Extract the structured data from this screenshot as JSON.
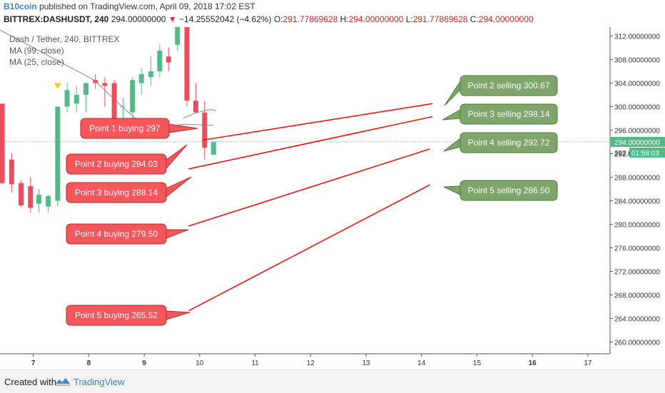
{
  "header": {
    "author": "B10coin",
    "published_text": "published on TradingView.com, April 09, 2018 17:02 EST",
    "symbol": "BITTREX:DASHUSDT, 240",
    "last": "294.00000000",
    "change_arrow": "▼",
    "change": "−14.25552042 (−4.62%)",
    "o_label": "O:",
    "o_value": "291.77869628",
    "h_label": "H:",
    "h_value": "294.00000000",
    "l_label": "L:",
    "l_value": "291.77869628",
    "c_label": "C:",
    "c_value": "294.00000000"
  },
  "legend": {
    "title": "Dash / Tether, 240, BITTREX",
    "ma99": "MA (99, close)",
    "ma25": "MA (25, close)"
  },
  "footer": {
    "created_with": "Created with",
    "brand": "TradingView"
  },
  "chart_data": {
    "type": "candlestick",
    "colors": {
      "up": "#53b987",
      "down": "#eb4d5c",
      "buy_label": "#f2575c",
      "sell_label": "#7ea56a",
      "line": "#ff0000",
      "ma99": "#7f8c8d",
      "ma25": "#5aa45a"
    },
    "ylim": [
      258,
      313.5
    ],
    "xlim": [
      6.4,
      17.4
    ],
    "y_ticks": [
      "260.00000000",
      "264.00000000",
      "268.00000000",
      "272.00000000",
      "276.00000000",
      "280.00000000",
      "284.00000000",
      "288.00000000",
      "292.00000000",
      "296.00000000",
      "300.00000000",
      "304.00000000",
      "308.00000000",
      "312.00000000"
    ],
    "y_tick_values": [
      260,
      264,
      268,
      272,
      276,
      280,
      284,
      288,
      292,
      296,
      300,
      304,
      308,
      312
    ],
    "x_ticks": [
      "7",
      "8",
      "9",
      "10",
      "11",
      "12",
      "13",
      "14",
      "15",
      "16",
      "17"
    ],
    "x_tick_values": [
      7,
      8,
      9,
      10,
      11,
      12,
      13,
      14,
      15,
      16,
      17
    ],
    "x_tick_bold": [
      "7",
      "8",
      "9",
      "16"
    ],
    "last_price_label": "294.00000000",
    "last_price_value": 294.0,
    "countdown_label": "01:58:03",
    "countdown_axis_label": "292.0",
    "candles": [
      {
        "t": 6.44,
        "o": 300.5,
        "h": 300.5,
        "l": 286.8,
        "c": 287.0
      },
      {
        "t": 6.61,
        "o": 291.0,
        "h": 292.0,
        "l": 285.4,
        "c": 286.8
      },
      {
        "t": 6.78,
        "o": 287.0,
        "h": 287.5,
        "l": 283.0,
        "c": 283.2
      },
      {
        "t": 6.95,
        "o": 286.5,
        "h": 288.0,
        "l": 282.0,
        "c": 282.8
      },
      {
        "t": 7.1,
        "o": 283.5,
        "h": 286.0,
        "l": 282.0,
        "c": 285.0
      },
      {
        "t": 7.27,
        "o": 283.0,
        "h": 285.0,
        "l": 282.0,
        "c": 284.8
      },
      {
        "t": 7.44,
        "o": 284.0,
        "h": 300.0,
        "l": 283.0,
        "c": 300.0
      },
      {
        "t": 7.61,
        "o": 300.0,
        "h": 304.0,
        "l": 299.0,
        "c": 302.8
      },
      {
        "t": 7.78,
        "o": 300.5,
        "h": 303.5,
        "l": 299.0,
        "c": 302.0
      },
      {
        "t": 7.95,
        "o": 302.0,
        "h": 304.0,
        "l": 299.0,
        "c": 304.0
      },
      {
        "t": 8.12,
        "o": 304.5,
        "h": 305.5,
        "l": 303.0,
        "c": 304.0
      },
      {
        "t": 8.29,
        "o": 304.0,
        "h": 305.0,
        "l": 300.0,
        "c": 303.5
      },
      {
        "t": 8.46,
        "o": 304.0,
        "h": 304.5,
        "l": 295.0,
        "c": 296.0
      },
      {
        "t": 8.62,
        "o": 300.0,
        "h": 301.5,
        "l": 297.0,
        "c": 300.0
      },
      {
        "t": 8.79,
        "o": 299.0,
        "h": 305.0,
        "l": 298.0,
        "c": 304.5
      },
      {
        "t": 8.95,
        "o": 304.0,
        "h": 306.5,
        "l": 302.0,
        "c": 305.5
      },
      {
        "t": 9.12,
        "o": 305.0,
        "h": 308.5,
        "l": 303.5,
        "c": 306.0
      },
      {
        "t": 9.28,
        "o": 306.0,
        "h": 310.5,
        "l": 305.0,
        "c": 309.5
      },
      {
        "t": 9.44,
        "o": 308.5,
        "h": 310.0,
        "l": 306.0,
        "c": 307.5
      },
      {
        "t": 9.6,
        "o": 310.5,
        "h": 313.5,
        "l": 309.5,
        "c": 313.5
      },
      {
        "t": 9.77,
        "o": 313.5,
        "h": 313.5,
        "l": 300.0,
        "c": 301.0
      },
      {
        "t": 9.93,
        "o": 301.0,
        "h": 304.0,
        "l": 299.0,
        "c": 299.0
      },
      {
        "t": 10.09,
        "o": 299.0,
        "h": 301.0,
        "l": 291.0,
        "c": 293.0
      },
      {
        "t": 10.25,
        "o": 291.8,
        "h": 294.0,
        "l": 291.8,
        "c": 294.0
      }
    ],
    "ma99": [
      [
        6.4,
        313.0
      ],
      [
        7.1,
        309.5
      ],
      [
        7.6,
        307.0
      ],
      [
        8.1,
        304.5
      ],
      [
        8.6,
        300.0
      ],
      [
        8.9,
        297.5
      ],
      [
        9.3,
        296.5
      ],
      [
        9.7,
        297.0
      ],
      [
        10.25,
        296.8
      ]
    ],
    "ma25": [
      [
        9.7,
        298.0
      ],
      [
        9.95,
        299.0
      ],
      [
        10.2,
        299.5
      ],
      [
        10.3,
        299.3
      ]
    ],
    "marker": {
      "t": 7.44,
      "v": 303.5
    },
    "trades": [
      {
        "buy_label": "Point 1 buying 297",
        "buy_value": 297,
        "sell_label": "Point 2 selling 300.67",
        "sell_value": 300.67,
        "line_start": [
          10.05,
          294.3
        ],
        "line_end": [
          14.2,
          300.5
        ]
      },
      {
        "buy_label": "Point 2 buying 294.03",
        "buy_value": 294.03,
        "sell_label": "Point 3 selling 298.14",
        "sell_value": 298.14,
        "line_start": [
          9.8,
          289.4
        ],
        "line_end": [
          14.2,
          298.3
        ]
      },
      {
        "buy_label": "Point 3 buying 288.14",
        "buy_value": 288.14,
        "sell_label": "Point 4 selling 292.72",
        "sell_value": 292.72,
        "line_start": [
          9.8,
          279.7
        ],
        "line_end": [
          14.15,
          292.8
        ]
      },
      {
        "buy_label": "Point 4 buying 279.50",
        "buy_value": 279.5,
        "sell_label": "Point 5 selling 286.50",
        "sell_value": 286.5,
        "line_start": [
          9.8,
          265.3
        ],
        "line_end": [
          14.15,
          286.7
        ]
      },
      {
        "buy_label": "Point 5 buying 265.52",
        "buy_value": 265.52,
        "sell_label": "",
        "sell_value": null,
        "line_start": null,
        "line_end": null
      }
    ]
  }
}
